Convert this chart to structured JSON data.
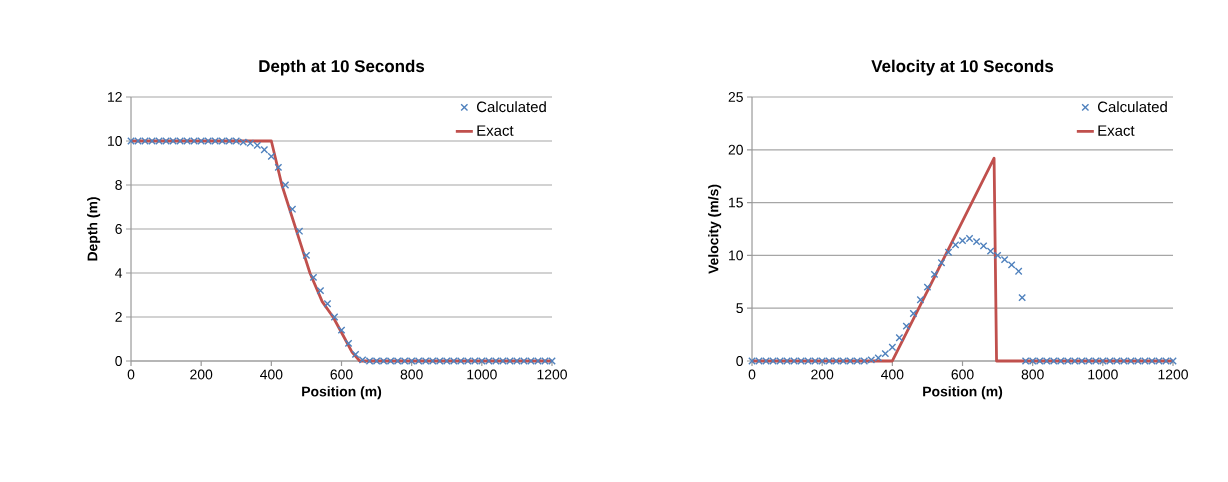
{
  "chart_data": [
    {
      "type": "line",
      "title": "Depth at 10 Seconds",
      "xlabel": "Position (m)",
      "ylabel": "Depth (m)",
      "xlim": [
        0,
        1200
      ],
      "ylim": [
        0,
        12
      ],
      "xticks": [
        0,
        200,
        400,
        600,
        800,
        1000,
        1200
      ],
      "yticks": [
        0,
        2,
        4,
        6,
        8,
        10,
        12
      ],
      "grid": "y",
      "legend": "top right",
      "series": [
        {
          "name": "Calculated",
          "type": "scatter",
          "marker": "cross",
          "color": "#4f81bd",
          "x": [
            0,
            20,
            40,
            60,
            80,
            100,
            120,
            140,
            160,
            180,
            200,
            220,
            240,
            260,
            280,
            300,
            320,
            340,
            360,
            380,
            400,
            420,
            440,
            460,
            480,
            500,
            520,
            540,
            560,
            580,
            600,
            620,
            640,
            660,
            680,
            700,
            720,
            740,
            760,
            780,
            800,
            820,
            840,
            860,
            880,
            900,
            920,
            940,
            960,
            980,
            1000,
            1020,
            1040,
            1060,
            1080,
            1100,
            1120,
            1140,
            1160,
            1180,
            1200
          ],
          "values": [
            10,
            10,
            10,
            10,
            10,
            10,
            10,
            10,
            10,
            10,
            10,
            10,
            10,
            10,
            10,
            10,
            9.95,
            9.9,
            9.8,
            9.6,
            9.3,
            8.8,
            8.0,
            6.9,
            5.9,
            4.8,
            3.8,
            3.2,
            2.6,
            2.0,
            1.4,
            0.8,
            0.3,
            0.05,
            0,
            0,
            0,
            0,
            0,
            0,
            0,
            0,
            0,
            0,
            0,
            0,
            0,
            0,
            0,
            0,
            0,
            0,
            0,
            0,
            0,
            0,
            0,
            0,
            0,
            0,
            0
          ]
        },
        {
          "name": "Exact",
          "color": "#c0504d",
          "x": [
            0,
            400,
            430,
            470,
            510,
            545,
            576,
            610,
            630,
            652,
            1200
          ],
          "values": [
            10,
            10,
            8.0,
            6.0,
            4.0,
            2.7,
            2.0,
            1.0,
            0.4,
            0,
            0
          ]
        }
      ]
    },
    {
      "type": "line",
      "title": "Velocity at 10 Seconds",
      "xlabel": "Position (m)",
      "ylabel": "Velocity (m/s)",
      "xlim": [
        0,
        1200
      ],
      "ylim": [
        0,
        25
      ],
      "xticks": [
        0,
        200,
        400,
        600,
        800,
        1000,
        1200
      ],
      "yticks": [
        0,
        5,
        10,
        15,
        20,
        25
      ],
      "grid": "y",
      "legend": "top right",
      "series": [
        {
          "name": "Calculated",
          "type": "scatter",
          "marker": "cross",
          "color": "#4f81bd",
          "x": [
            0,
            20,
            40,
            60,
            80,
            100,
            120,
            140,
            160,
            180,
            200,
            220,
            240,
            260,
            280,
            300,
            320,
            340,
            360,
            380,
            400,
            420,
            440,
            460,
            480,
            500,
            520,
            540,
            560,
            580,
            600,
            620,
            640,
            660,
            680,
            700,
            720,
            740,
            760,
            770,
            780,
            800,
            820,
            840,
            860,
            880,
            900,
            920,
            940,
            960,
            980,
            1000,
            1020,
            1040,
            1060,
            1080,
            1100,
            1120,
            1140,
            1160,
            1180,
            1200
          ],
          "values": [
            0,
            0,
            0,
            0,
            0,
            0,
            0,
            0,
            0,
            0,
            0,
            0,
            0,
            0,
            0,
            0,
            0,
            0.1,
            0.3,
            0.7,
            1.3,
            2.2,
            3.3,
            4.5,
            5.8,
            7.0,
            8.2,
            9.3,
            10.3,
            11.0,
            11.4,
            11.6,
            11.3,
            10.9,
            10.4,
            10.0,
            9.6,
            9.1,
            8.5,
            6.0,
            0,
            0,
            0,
            0,
            0,
            0,
            0,
            0,
            0,
            0,
            0,
            0,
            0,
            0,
            0,
            0,
            0,
            0,
            0,
            0,
            0,
            0
          ]
        },
        {
          "name": "Exact",
          "color": "#c0504d",
          "x": [
            0,
            400,
            690,
            697,
            1200
          ],
          "values": [
            0,
            0,
            19.2,
            0,
            0
          ]
        }
      ]
    }
  ]
}
